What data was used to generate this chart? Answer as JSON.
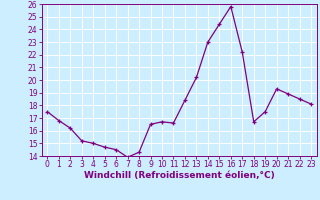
{
  "x_data": [
    0,
    1,
    2,
    3,
    4,
    5,
    6,
    7,
    8,
    9,
    10,
    11,
    12,
    13,
    14,
    15,
    16,
    17,
    18,
    19,
    20,
    21,
    22,
    23
  ],
  "y_data": [
    17.5,
    16.8,
    16.2,
    15.2,
    15.0,
    14.7,
    14.5,
    13.9,
    14.3,
    16.5,
    16.7,
    16.6,
    18.4,
    20.2,
    23.0,
    24.4,
    25.8,
    22.2,
    16.7,
    17.5,
    19.3,
    18.9,
    18.5,
    18.1
  ],
  "line_color": "#800080",
  "marker": "+",
  "xlabel": "Windchill (Refroidissement éolien,°C)",
  "ylim": [
    14,
    26
  ],
  "xlim": [
    -0.5,
    23.5
  ],
  "yticks": [
    14,
    15,
    16,
    17,
    18,
    19,
    20,
    21,
    22,
    23,
    24,
    25,
    26
  ],
  "xticks": [
    0,
    1,
    2,
    3,
    4,
    5,
    6,
    7,
    8,
    9,
    10,
    11,
    12,
    13,
    14,
    15,
    16,
    17,
    18,
    19,
    20,
    21,
    22,
    23
  ],
  "bg_color": "#cceeff",
  "grid_color": "#ffffff",
  "tick_color": "#800080",
  "label_color": "#800080",
  "tick_fontsize": 5.5,
  "xlabel_fontsize": 6.5,
  "linewidth": 0.9,
  "markersize": 3.0,
  "markeredgewidth": 0.9
}
